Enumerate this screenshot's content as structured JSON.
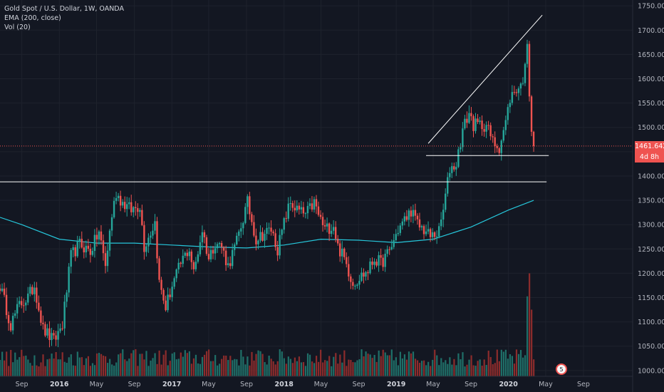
{
  "legend": {
    "symbol": "Gold Spot / U.S. Dollar, 1W, OANDA",
    "ema": "EMA (200, close)",
    "vol": "Vol (20)"
  },
  "colors": {
    "background": "#131722",
    "up": "#26a69a",
    "down": "#ef5350",
    "ema": "#26c6da",
    "volume_up": "#1f6f68",
    "volume_down": "#8c2c2c",
    "last_price": "#ef5350",
    "drawing": "#ffffff",
    "axis_text": "#b2b5be"
  },
  "last_price": {
    "value": "1461.642",
    "countdown": "4d 8h"
  },
  "event_badge": "5",
  "chart_data": {
    "type": "candlestick",
    "y_axis": {
      "range": [
        988,
        1762
      ],
      "ticks": [
        "1000.000",
        "1050.000",
        "1100.000",
        "1150.000",
        "1200.000",
        "1250.000",
        "1300.000",
        "1350.000",
        "1400.000",
        "1450.000",
        "1500.000",
        "1550.000",
        "1600.000",
        "1650.000",
        "1700.000",
        "1750.000"
      ]
    },
    "x_axis": {
      "range": [
        "2015-06-22",
        "2021-02-08"
      ],
      "ticks": [
        {
          "label": "Sep",
          "date": "2015-09-01",
          "major": false
        },
        {
          "label": "2016",
          "date": "2016-01-01",
          "major": true
        },
        {
          "label": "May",
          "date": "2016-05-01",
          "major": false
        },
        {
          "label": "Sep",
          "date": "2016-09-01",
          "major": false
        },
        {
          "label": "2017",
          "date": "2017-01-01",
          "major": true
        },
        {
          "label": "May",
          "date": "2017-05-01",
          "major": false
        },
        {
          "label": "Sep",
          "date": "2017-09-01",
          "major": false
        },
        {
          "label": "2018",
          "date": "2018-01-01",
          "major": true
        },
        {
          "label": "May",
          "date": "2018-05-01",
          "major": false
        },
        {
          "label": "Sep",
          "date": "2018-09-01",
          "major": false
        },
        {
          "label": "2019",
          "date": "2019-01-01",
          "major": true
        },
        {
          "label": "May",
          "date": "2019-05-01",
          "major": false
        },
        {
          "label": "Sep",
          "date": "2019-09-01",
          "major": false
        },
        {
          "label": "2020",
          "date": "2020-01-01",
          "major": true
        },
        {
          "label": "May",
          "date": "2020-05-01",
          "major": false
        },
        {
          "label": "Sep",
          "date": "2020-09-01",
          "major": false
        }
      ]
    },
    "close_anchors": [
      [
        "2015-06-22",
        1175
      ],
      [
        "2015-07-27",
        1095
      ],
      [
        "2015-08-24",
        1135
      ],
      [
        "2015-09-21",
        1150
      ],
      [
        "2015-10-12",
        1175
      ],
      [
        "2015-11-09",
        1085
      ],
      [
        "2015-12-14",
        1060
      ],
      [
        "2016-01-11",
        1095
      ],
      [
        "2016-02-08",
        1235
      ],
      [
        "2016-03-07",
        1260
      ],
      [
        "2016-04-11",
        1245
      ],
      [
        "2016-05-09",
        1285
      ],
      [
        "2016-05-30",
        1215
      ],
      [
        "2016-06-20",
        1320
      ],
      [
        "2016-07-04",
        1365
      ],
      [
        "2016-07-25",
        1345
      ],
      [
        "2016-08-22",
        1330
      ],
      [
        "2016-09-19",
        1340
      ],
      [
        "2016-10-03",
        1255
      ],
      [
        "2016-11-07",
        1305
      ],
      [
        "2016-11-21",
        1180
      ],
      [
        "2016-12-12",
        1130
      ],
      [
        "2017-01-02",
        1175
      ],
      [
        "2017-02-06",
        1230
      ],
      [
        "2017-02-27",
        1250
      ],
      [
        "2017-03-13",
        1200
      ],
      [
        "2017-04-10",
        1290
      ],
      [
        "2017-05-01",
        1230
      ],
      [
        "2017-05-22",
        1265
      ],
      [
        "2017-06-12",
        1255
      ],
      [
        "2017-07-03",
        1215
      ],
      [
        "2017-07-31",
        1265
      ],
      [
        "2017-09-04",
        1345
      ],
      [
        "2017-10-02",
        1270
      ],
      [
        "2017-10-23",
        1280
      ],
      [
        "2017-11-20",
        1290
      ],
      [
        "2017-12-11",
        1250
      ],
      [
        "2018-01-08",
        1320
      ],
      [
        "2018-01-22",
        1345
      ],
      [
        "2018-02-12",
        1330
      ],
      [
        "2018-03-12",
        1320
      ],
      [
        "2018-04-09",
        1345
      ],
      [
        "2018-04-23",
        1320
      ],
      [
        "2018-05-14",
        1290
      ],
      [
        "2018-06-11",
        1300
      ],
      [
        "2018-06-25",
        1255
      ],
      [
        "2018-07-16",
        1230
      ],
      [
        "2018-08-13",
        1180
      ],
      [
        "2018-09-10",
        1195
      ],
      [
        "2018-10-01",
        1205
      ],
      [
        "2018-10-22",
        1230
      ],
      [
        "2018-11-12",
        1220
      ],
      [
        "2018-12-10",
        1245
      ],
      [
        "2019-01-07",
        1290
      ],
      [
        "2019-02-04",
        1315
      ],
      [
        "2019-02-18",
        1330
      ],
      [
        "2019-03-11",
        1300
      ],
      [
        "2019-04-01",
        1290
      ],
      [
        "2019-04-22",
        1275
      ],
      [
        "2019-05-20",
        1285
      ],
      [
        "2019-06-03",
        1330
      ],
      [
        "2019-06-24",
        1415
      ],
      [
        "2019-07-15",
        1425
      ],
      [
        "2019-08-05",
        1495
      ],
      [
        "2019-08-26",
        1530
      ],
      [
        "2019-09-09",
        1505
      ],
      [
        "2019-09-30",
        1505
      ],
      [
        "2019-10-21",
        1505
      ],
      [
        "2019-11-11",
        1470
      ],
      [
        "2019-12-02",
        1460
      ],
      [
        "2019-12-23",
        1510
      ],
      [
        "2020-01-06",
        1560
      ],
      [
        "2020-01-27",
        1580
      ],
      [
        "2020-02-10",
        1585
      ],
      [
        "2020-02-24",
        1620
      ],
      [
        "2020-03-02",
        1680
      ],
      [
        "2020-03-09",
        1575
      ],
      [
        "2020-03-16",
        1498
      ],
      [
        "2020-03-23",
        1461.642
      ]
    ],
    "ema_points": [
      [
        "2015-06-22",
        1315
      ],
      [
        "2015-09-01",
        1300
      ],
      [
        "2016-01-01",
        1270
      ],
      [
        "2016-05-01",
        1262
      ],
      [
        "2016-09-01",
        1262
      ],
      [
        "2017-01-01",
        1258
      ],
      [
        "2017-05-01",
        1254
      ],
      [
        "2017-09-01",
        1252
      ],
      [
        "2018-01-01",
        1258
      ],
      [
        "2018-05-01",
        1270
      ],
      [
        "2018-09-01",
        1268
      ],
      [
        "2019-01-01",
        1263
      ],
      [
        "2019-05-01",
        1270
      ],
      [
        "2019-09-01",
        1295
      ],
      [
        "2020-01-01",
        1330
      ],
      [
        "2020-03-23",
        1350
      ]
    ],
    "drawings": [
      {
        "name": "trendline",
        "from": [
          "2019-04-15",
          1467
        ],
        "to": [
          "2020-04-20",
          1731
        ]
      },
      {
        "name": "support-1445",
        "from": [
          "2019-04-08",
          1442
        ],
        "to": [
          "2020-05-11",
          1442
        ]
      },
      {
        "name": "resistance-1388",
        "from": [
          "2015-06-22",
          1388
        ],
        "to": [
          "2020-05-04",
          1388
        ]
      }
    ],
    "volume": {
      "scale_max": 1.0,
      "typical_height": 0.18,
      "spike_weeks": [
        [
          "2020-03-02",
          0.66
        ],
        [
          "2020-03-09",
          0.85
        ],
        [
          "2020-03-16",
          0.55
        ]
      ]
    }
  }
}
